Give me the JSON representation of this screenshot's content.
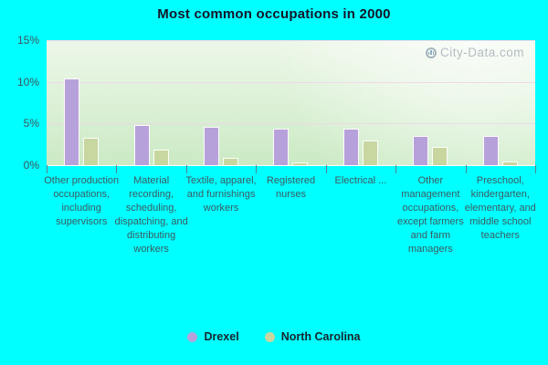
{
  "title": "Most common occupations in 2000",
  "watermark": "City-Data.com",
  "colors": {
    "background": "#00ffff",
    "drexel": "#b7a1da",
    "north_carolina": "#c8d6a0",
    "bar_border": "#ffffff",
    "gridline": "#ecd8e8",
    "axis_text": "#3e5a60",
    "title_text": "#151528",
    "watermark_text": "#a7b1b9"
  },
  "chart_data": {
    "type": "bar",
    "title": "Most common occupations in 2000",
    "xlabel": "",
    "ylabel": "",
    "ylim": [
      0,
      15
    ],
    "grid": true,
    "legend_position": "bottom",
    "yticks": [
      {
        "label": "0%",
        "value": 0
      },
      {
        "label": "5%",
        "value": 5
      },
      {
        "label": "10%",
        "value": 10
      },
      {
        "label": "15%",
        "value": 15
      }
    ],
    "categories": [
      "Other production occupations, including supervisors",
      "Material recording, scheduling, dispatching, and distributing workers",
      "Textile, apparel, and furnishings workers",
      "Registered nurses",
      "Electrical ...",
      "Other management occupations, except farmers and farm managers",
      "Preschool, kindergarten, elementary, and middle school teachers"
    ],
    "series": [
      {
        "name": "Drexel",
        "color": "#b7a1da",
        "values": [
          10.3,
          4.7,
          4.5,
          4.3,
          4.3,
          3.4,
          3.4
        ]
      },
      {
        "name": "North Carolina",
        "color": "#c8d6a0",
        "values": [
          3.2,
          1.8,
          0.8,
          0.1,
          2.8,
          2.1,
          0.3
        ]
      }
    ]
  }
}
